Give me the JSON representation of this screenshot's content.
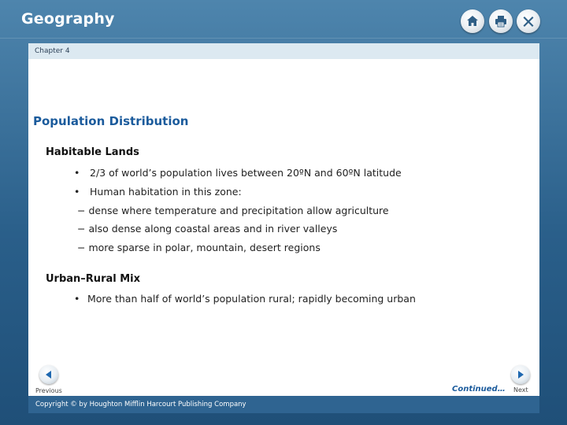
{
  "app": {
    "title": "Geography"
  },
  "toolbar": {
    "home_icon": "home-icon",
    "print_icon": "printer-icon",
    "close_icon": "close-icon"
  },
  "chapter": {
    "label": "Chapter 4"
  },
  "slide": {
    "title": "Population Distribution",
    "sections": [
      {
        "heading": "Habitable Lands",
        "bullets": [
          "2/3 of world’s population lives between 20ºN and 60ºN latitude",
          "Human habitation in this zone:"
        ],
        "dashes": [
          "− dense where temperature and precipitation allow agriculture",
          "− also dense along coastal areas and in river valleys",
          "− more sparse in polar, mountain, desert regions"
        ]
      },
      {
        "heading": "Urban–Rural Mix",
        "bullets": [
          "More than half of world’s population rural; rapidly becoming urban"
        ]
      }
    ]
  },
  "nav": {
    "previous_label": "Previous",
    "next_label": "Next",
    "continued_label": "Continued…"
  },
  "footer": {
    "copyright": "Copyright © by Houghton Mifflin Harcourt Publishing Company"
  },
  "colors": {
    "frame": "#2a5f8a",
    "title_blue": "#1b5b9c",
    "nav_blue": "#1f68b0",
    "chapter_bar": "#dce9f1"
  }
}
